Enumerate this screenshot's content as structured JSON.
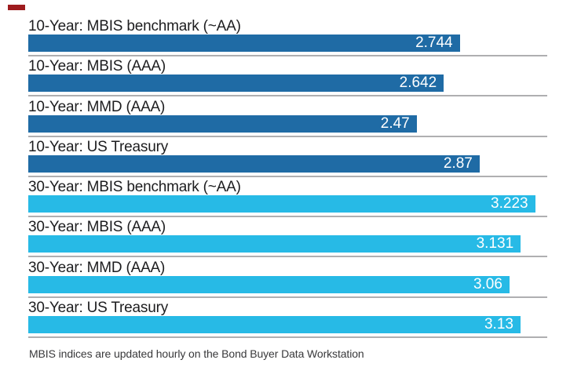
{
  "accent": {
    "dash_color": "#9e1b1e"
  },
  "chart_data": {
    "type": "bar",
    "orientation": "horizontal",
    "xlim": [
      0,
      3.3
    ],
    "grid": false,
    "legend": "none",
    "group_colors": {
      "10-year": "#1f6ba5",
      "30-year": "#27bae6"
    },
    "value_label_color": "#ffffff",
    "bars": [
      {
        "label": "10-Year: MBIS benchmark (~AA)",
        "value": 2.744,
        "value_label": "2.744",
        "group": "10-year"
      },
      {
        "label": "10-Year: MBIS (AAA)",
        "value": 2.642,
        "value_label": "2.642",
        "group": "10-year"
      },
      {
        "label": "10-Year: MMD (AAA)",
        "value": 2.47,
        "value_label": "2.47",
        "group": "10-year"
      },
      {
        "label": "10-Year: US Treasury",
        "value": 2.87,
        "value_label": "2.87",
        "group": "10-year"
      },
      {
        "label": "30-Year: MBIS benchmark (~AA)",
        "value": 3.223,
        "value_label": "3.223",
        "group": "30-year"
      },
      {
        "label": "30-Year: MBIS (AAA)",
        "value": 3.131,
        "value_label": "3.131",
        "group": "30-year"
      },
      {
        "label": "30-Year: MMD (AAA)",
        "value": 3.06,
        "value_label": "3.06",
        "group": "30-year"
      },
      {
        "label": "30-Year: US Treasury",
        "value": 3.13,
        "value_label": "3.13",
        "group": "30-year"
      }
    ],
    "note": "MBIS indices are updated hourly on the Bond Buyer Data Workstation"
  }
}
